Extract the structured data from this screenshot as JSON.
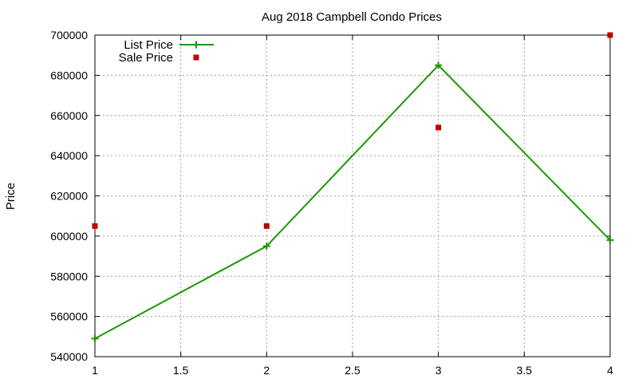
{
  "chart_data": {
    "type": "line",
    "title": "Aug 2018 Campbell Condo Prices",
    "xlabel": "",
    "ylabel": "Price",
    "xlim": [
      1,
      4
    ],
    "ylim": [
      540000,
      700000
    ],
    "x_ticks": [
      1,
      1.5,
      2,
      2.5,
      3,
      3.5,
      4
    ],
    "x_tick_labels": [
      "1",
      "1.5",
      "2",
      "2.5",
      "3",
      "3.5",
      "4"
    ],
    "y_ticks": [
      540000,
      560000,
      580000,
      600000,
      620000,
      640000,
      660000,
      680000,
      700000
    ],
    "y_tick_labels": [
      "540000",
      "560000",
      "580000",
      "600000",
      "620000",
      "640000",
      "660000",
      "680000",
      "700000"
    ],
    "grid": true,
    "legend_position": "top-left",
    "series": [
      {
        "name": "List Price",
        "style": "line-with-plus-markers",
        "color": "#1a9900",
        "x": [
          1,
          2,
          3,
          4
        ],
        "values": [
          549000,
          595000,
          685000,
          598000
        ]
      },
      {
        "name": "Sale Price",
        "style": "square-points",
        "color": "#c00000",
        "x": [
          1,
          2,
          3,
          4
        ],
        "values": [
          605000,
          605000,
          654000,
          700000
        ]
      }
    ]
  }
}
